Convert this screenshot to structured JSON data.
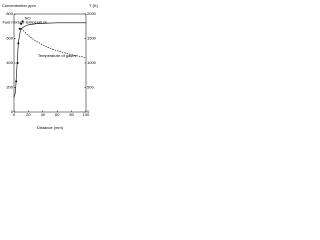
{
  "chart_data": {
    "type": "line",
    "y_label": "Concentration ppm",
    "y2_label": "T (K)",
    "x_label": "Distance (mm)",
    "xlim": [
      0,
      100
    ],
    "xticks": [
      0,
      20,
      40,
      60,
      80,
      100
    ],
    "ylim": [
      0,
      800
    ],
    "yticks": [
      0,
      200,
      400,
      600,
      800
    ],
    "y2lim": [
      0,
      2000
    ],
    "y2ticks": [
      0,
      500,
      1000,
      1500,
      2000
    ],
    "series": [
      {
        "name": "Fuel mixture temperature",
        "type": "line",
        "axis": "y2",
        "color": "#000000",
        "x": [
          0,
          2,
          4,
          6,
          8,
          10,
          15,
          20,
          30,
          40,
          60,
          80,
          100
        ],
        "values": [
          300,
          400,
          900,
          1400,
          1600,
          1700,
          1750,
          1780,
          1800,
          1810,
          1820,
          1820,
          1820
        ]
      },
      {
        "name": "Temperature of gases",
        "type": "line",
        "axis": "y2",
        "color": "#000000",
        "x": [
          10,
          20,
          30,
          40,
          50,
          60,
          70,
          80,
          90,
          100
        ],
        "values": [
          1700,
          1560,
          1450,
          1370,
          1300,
          1250,
          1210,
          1170,
          1140,
          1110
        ]
      },
      {
        "name": "NO",
        "type": "scatter",
        "color": "#000000",
        "x": [
          3,
          5,
          6,
          8,
          10,
          12
        ],
        "values": [
          250,
          400,
          560,
          680,
          720,
          740
        ]
      }
    ]
  }
}
